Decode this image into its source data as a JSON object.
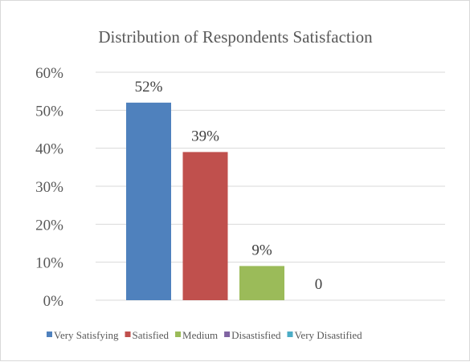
{
  "chart_data": {
    "type": "bar",
    "title": "Distribution  of Respondents Satisfaction",
    "xlabel": "",
    "ylabel": "",
    "ylim": [
      0,
      60
    ],
    "y_ticks": [
      "0%",
      "10%",
      "20%",
      "30%",
      "40%",
      "50%",
      "60%"
    ],
    "y_tick_values": [
      0,
      10,
      20,
      30,
      40,
      50,
      60
    ],
    "grid": true,
    "legend_position": "bottom",
    "categories": [
      "Very Satisfying",
      "Satisfied",
      "Medium",
      "Disastisfied",
      "Very Disastified"
    ],
    "series": [
      {
        "name": "Very Satisfying",
        "color": "#4f81bd",
        "value": 52,
        "label": "52%"
      },
      {
        "name": "Satisfied",
        "color": "#c0504d",
        "value": 39,
        "label": "39%"
      },
      {
        "name": "Medium",
        "color": "#9bbb59",
        "value": 9,
        "label": "9%"
      },
      {
        "name": "Disastisfied",
        "color": "#8064a2",
        "value": 0,
        "label": "0"
      },
      {
        "name": "Very Disastified",
        "color": "#4bacc6",
        "value": 0,
        "label": ""
      }
    ]
  }
}
